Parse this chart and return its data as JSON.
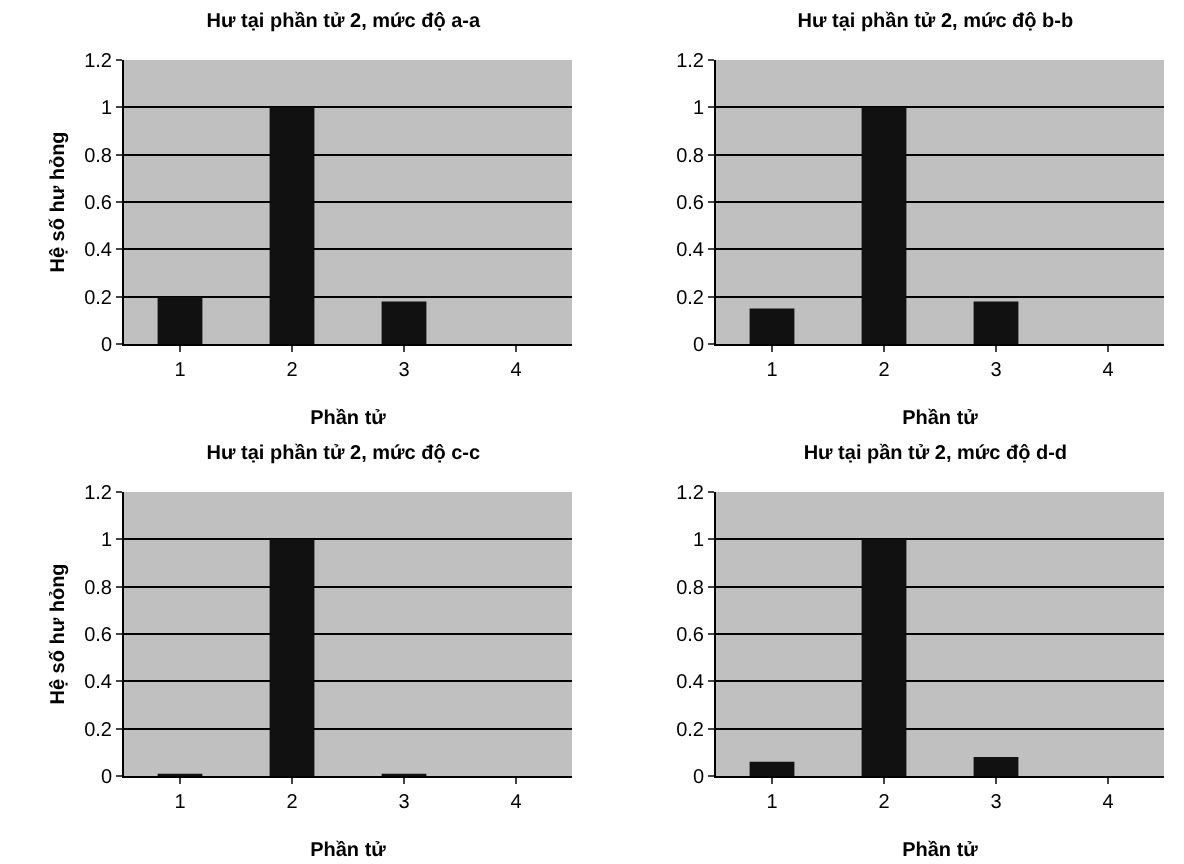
{
  "chart_data": [
    {
      "type": "bar",
      "title": "Hư tại phần tử 2, mức độ a-a",
      "xlabel": "Phần tử",
      "ylabel": "Hệ số hư hỏng",
      "categories": [
        "1",
        "2",
        "3",
        "4"
      ],
      "values": [
        0.2,
        1,
        0.18,
        0
      ],
      "color": "#111111",
      "ylim": [
        0,
        1.2
      ],
      "yticks": [
        0,
        0.2,
        0.4,
        0.6,
        0.8,
        1,
        1.2
      ],
      "grid": "y",
      "legend": false
    },
    {
      "type": "bar",
      "title": "Hư tại phần tử 2, mức độ b-b",
      "xlabel": "Phần tử",
      "categories": [
        "1",
        "2",
        "3",
        "4"
      ],
      "values": [
        0.15,
        1,
        0.18,
        0
      ],
      "color": "#111111",
      "ylim": [
        0,
        1.2
      ],
      "yticks": [
        0,
        0.2,
        0.4,
        0.6,
        0.8,
        1,
        1.2
      ],
      "grid": "y",
      "legend": false
    },
    {
      "type": "bar",
      "title": "Hư tại phần tử 2, mức độ c-c",
      "xlabel": "Phần tử",
      "ylabel": "Hệ số hư hỏng",
      "categories": [
        "1",
        "2",
        "3",
        "4"
      ],
      "values": [
        0.01,
        1,
        0.01,
        0
      ],
      "color": "#111111",
      "ylim": [
        0,
        1.2
      ],
      "yticks": [
        0,
        0.2,
        0.4,
        0.6,
        0.8,
        1,
        1.2
      ],
      "grid": "y",
      "legend": false
    },
    {
      "type": "bar",
      "title": "Hư tại pần tử 2, mức độ d-d",
      "xlabel": "Phần tử",
      "categories": [
        "1",
        "2",
        "3",
        "4"
      ],
      "values": [
        0.06,
        1,
        0.08,
        0
      ],
      "color": "#111111",
      "ylim": [
        0,
        1.2
      ],
      "yticks": [
        0,
        0.2,
        0.4,
        0.6,
        0.8,
        1,
        1.2
      ],
      "grid": "y",
      "legend": false
    }
  ]
}
